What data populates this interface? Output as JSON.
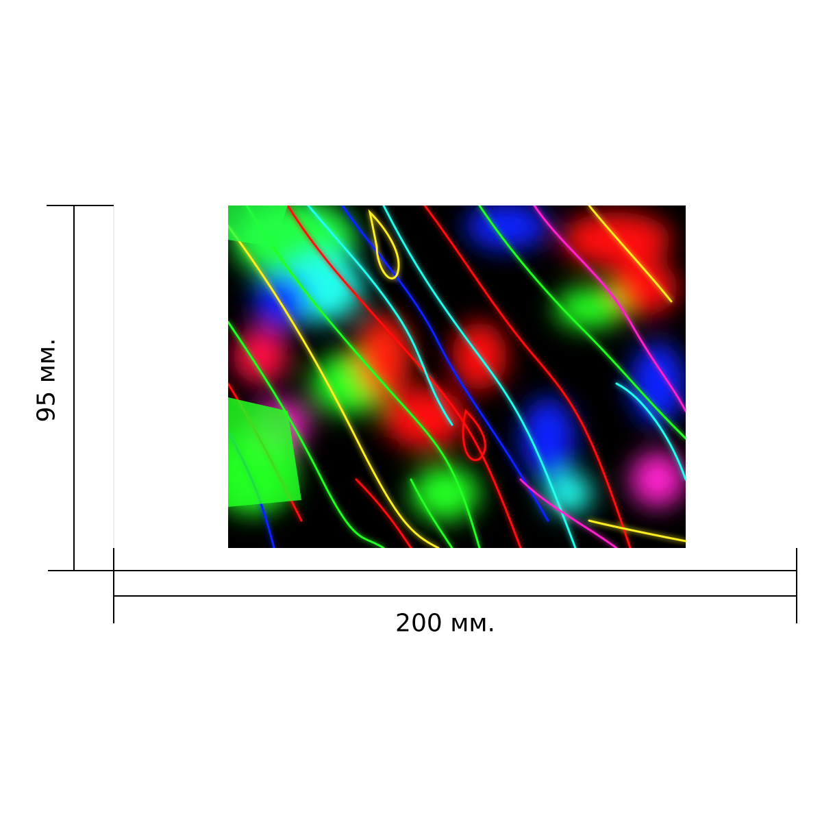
{
  "dimensions": {
    "height_label": "95 мм.",
    "width_label": "200 мм."
  },
  "colors": {
    "line": "#000000",
    "background": "#ffffff",
    "panel_base": "#000000",
    "neon_green": "#22ff22",
    "neon_red": "#ff1111",
    "neon_blue": "#1122ff",
    "neon_cyan": "#22ffee",
    "neon_yellow": "#ffee22",
    "neon_magenta": "#ff22cc"
  }
}
